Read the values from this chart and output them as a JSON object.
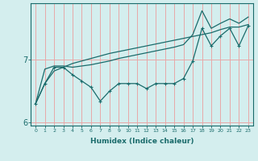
{
  "xlabel": "Humidex (Indice chaleur)",
  "bg_color": "#d4eeee",
  "grid_color": "#e8a8a8",
  "line_color": "#1a6b6b",
  "x_values": [
    0,
    1,
    2,
    3,
    4,
    5,
    6,
    7,
    8,
    9,
    10,
    11,
    12,
    13,
    14,
    15,
    16,
    17,
    18,
    19,
    20,
    21,
    22,
    23
  ],
  "line_straight": [
    6.3,
    6.62,
    6.82,
    6.88,
    6.94,
    6.98,
    7.02,
    7.06,
    7.1,
    7.13,
    7.16,
    7.19,
    7.22,
    7.25,
    7.28,
    7.31,
    7.34,
    7.37,
    7.4,
    7.43,
    7.48,
    7.52,
    7.52,
    7.56
  ],
  "line_upper": [
    6.3,
    6.85,
    6.9,
    6.9,
    6.88,
    6.9,
    6.92,
    6.95,
    6.98,
    7.02,
    7.05,
    7.08,
    7.11,
    7.14,
    7.17,
    7.2,
    7.24,
    7.4,
    7.78,
    7.5,
    7.58,
    7.65,
    7.58,
    7.68
  ],
  "line_zigzag": [
    6.3,
    6.62,
    6.88,
    6.88,
    6.76,
    6.66,
    6.56,
    6.34,
    6.5,
    6.62,
    6.62,
    6.62,
    6.54,
    6.62,
    6.62,
    6.62,
    6.7,
    6.98,
    7.5,
    7.22,
    7.38,
    7.5,
    7.22,
    7.54
  ],
  "ylim": [
    5.95,
    7.9
  ],
  "ytick_positions": [
    6.0,
    7.0
  ],
  "ytick_labels": [
    "6",
    "7"
  ],
  "xlim": [
    -0.5,
    23.5
  ]
}
